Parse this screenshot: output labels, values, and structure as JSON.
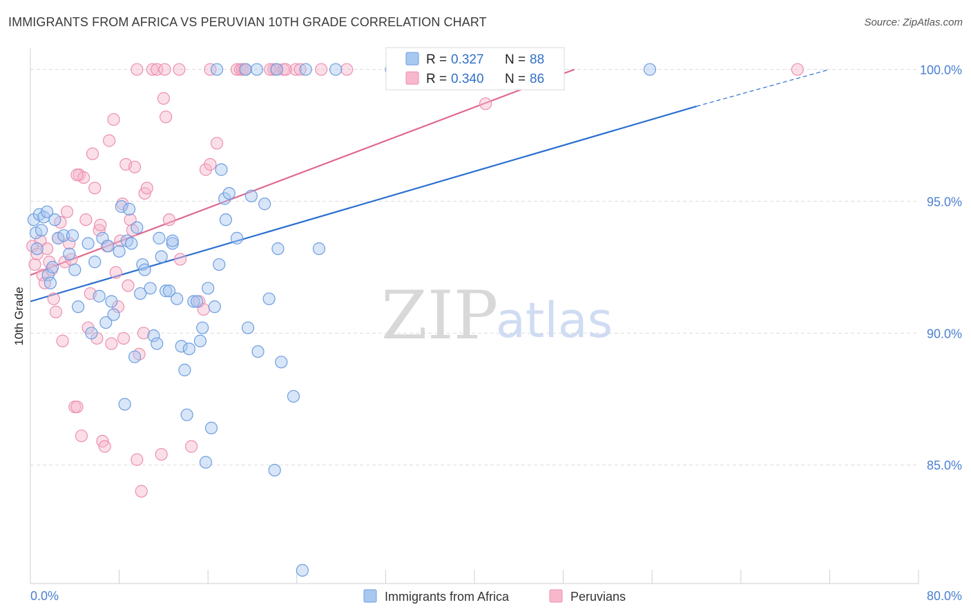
{
  "header": {
    "title": "IMMIGRANTS FROM AFRICA VS PERUVIAN 10TH GRADE CORRELATION CHART",
    "source": "Source: ZipAtlas.com"
  },
  "watermark": {
    "zip": "ZIP",
    "atlas": "atlas"
  },
  "colors": {
    "africa_fill": "#a8c8f0",
    "africa_stroke": "#6c9de0",
    "africa_line": "#2a6fd0",
    "peru_fill": "#f7b8cc",
    "peru_stroke": "#ec8fae",
    "peru_line": "#e06890",
    "grid": "#dcdcdc",
    "tick_text": "#4a7fd0"
  },
  "legend_top": {
    "rows": [
      {
        "r_label": "R =",
        "r_value": "0.327",
        "n_label": "N =",
        "n_value": "88"
      },
      {
        "r_label": "R =",
        "r_value": "0.340",
        "n_label": "N =",
        "n_value": "86"
      }
    ]
  },
  "legend_bottom": {
    "items": [
      {
        "label": "Immigrants from Africa"
      },
      {
        "label": "Peruvians"
      }
    ]
  },
  "chart_data": {
    "type": "scatter",
    "title": "IMMIGRANTS FROM AFRICA VS PERUVIAN 10TH GRADE CORRELATION CHART",
    "xlabel": "",
    "ylabel": "10th Grade",
    "xlim": [
      0,
      80
    ],
    "ylim": [
      80.5,
      100.8
    ],
    "x_tick_labels": [
      "0.0%",
      "80.0%"
    ],
    "y_ticks": [
      85,
      90,
      95,
      100
    ],
    "y_tick_labels": [
      "85.0%",
      "90.0%",
      "95.0%",
      "100.0%"
    ],
    "grid": true,
    "legend_position": "top-center",
    "series": [
      {
        "name": "Immigrants from Africa",
        "r": 0.327,
        "n": 88,
        "trend": {
          "x0": 0,
          "y0": 91.2,
          "x1": 60,
          "y1": 98.6,
          "dashed_to_x": 72,
          "dashed_to_y": 100.0
        },
        "points": [
          [
            0.3,
            94.3
          ],
          [
            0.5,
            93.8
          ],
          [
            0.6,
            93.2
          ],
          [
            0.8,
            94.5
          ],
          [
            1.0,
            93.9
          ],
          [
            1.2,
            94.4
          ],
          [
            1.5,
            94.6
          ],
          [
            1.6,
            92.2
          ],
          [
            1.8,
            91.9
          ],
          [
            2.0,
            92.5
          ],
          [
            2.2,
            94.3
          ],
          [
            2.5,
            93.6
          ],
          [
            3.0,
            93.7
          ],
          [
            3.5,
            93.0
          ],
          [
            3.8,
            93.7
          ],
          [
            4.0,
            92.4
          ],
          [
            4.3,
            91.0
          ],
          [
            5.2,
            93.4
          ],
          [
            5.5,
            90.0
          ],
          [
            5.8,
            92.7
          ],
          [
            6.2,
            91.4
          ],
          [
            6.5,
            93.6
          ],
          [
            6.8,
            90.4
          ],
          [
            7.0,
            93.3
          ],
          [
            7.3,
            91.2
          ],
          [
            7.5,
            90.7
          ],
          [
            8.0,
            93.1
          ],
          [
            8.2,
            94.8
          ],
          [
            8.5,
            87.3
          ],
          [
            8.7,
            93.5
          ],
          [
            8.9,
            94.7
          ],
          [
            9.1,
            93.4
          ],
          [
            9.4,
            89.1
          ],
          [
            9.6,
            94.0
          ],
          [
            9.9,
            91.5
          ],
          [
            10.1,
            92.6
          ],
          [
            10.3,
            92.4
          ],
          [
            10.8,
            91.7
          ],
          [
            11.1,
            89.9
          ],
          [
            11.4,
            89.6
          ],
          [
            11.6,
            93.6
          ],
          [
            11.8,
            92.9
          ],
          [
            12.2,
            91.6
          ],
          [
            12.5,
            91.6
          ],
          [
            12.8,
            93.4
          ],
          [
            13.2,
            91.3
          ],
          [
            13.6,
            89.5
          ],
          [
            13.9,
            88.6
          ],
          [
            14.1,
            86.9
          ],
          [
            14.3,
            89.4
          ],
          [
            14.7,
            91.2
          ],
          [
            15.0,
            91.2
          ],
          [
            15.3,
            89.7
          ],
          [
            15.5,
            90.2
          ],
          [
            15.8,
            85.1
          ],
          [
            16.0,
            91.7
          ],
          [
            16.3,
            86.4
          ],
          [
            16.6,
            91.0
          ],
          [
            17.0,
            92.6
          ],
          [
            17.2,
            96.2
          ],
          [
            17.5,
            95.1
          ],
          [
            17.6,
            94.3
          ],
          [
            17.9,
            95.3
          ],
          [
            18.6,
            93.6
          ],
          [
            19.6,
            90.2
          ],
          [
            19.9,
            95.2
          ],
          [
            20.5,
            89.3
          ],
          [
            21.1,
            94.9
          ],
          [
            21.5,
            91.3
          ],
          [
            22.0,
            84.8
          ],
          [
            22.3,
            93.2
          ],
          [
            22.6,
            88.9
          ],
          [
            23.7,
            87.6
          ],
          [
            24.5,
            81.0
          ],
          [
            26.0,
            93.2
          ],
          [
            19.4,
            100.0
          ],
          [
            20.4,
            100.0
          ],
          [
            22.2,
            100.0
          ],
          [
            24.8,
            100.0
          ],
          [
            27.5,
            100.0
          ],
          [
            32.5,
            100.0
          ],
          [
            32.8,
            100.0
          ],
          [
            33.1,
            100.0
          ],
          [
            33.3,
            100.0
          ],
          [
            39.3,
            100.0
          ],
          [
            55.8,
            100.0
          ],
          [
            12.8,
            93.5
          ],
          [
            16.8,
            100.0
          ]
        ]
      },
      {
        "name": "Peruvians",
        "r": 0.34,
        "n": 86,
        "trend": {
          "x0": 0,
          "y0": 92.2,
          "x1": 49,
          "y1": 100.0
        },
        "points": [
          [
            0.2,
            93.3
          ],
          [
            0.4,
            92.6
          ],
          [
            0.6,
            93.0
          ],
          [
            0.9,
            93.5
          ],
          [
            1.1,
            92.2
          ],
          [
            1.3,
            91.9
          ],
          [
            1.5,
            93.2
          ],
          [
            1.7,
            92.7
          ],
          [
            1.9,
            92.4
          ],
          [
            2.1,
            91.3
          ],
          [
            2.3,
            90.8
          ],
          [
            2.5,
            93.6
          ],
          [
            2.7,
            94.2
          ],
          [
            2.9,
            89.7
          ],
          [
            3.1,
            92.7
          ],
          [
            3.3,
            94.6
          ],
          [
            3.5,
            93.4
          ],
          [
            3.7,
            92.8
          ],
          [
            4.0,
            87.2
          ],
          [
            4.2,
            87.2
          ],
          [
            4.4,
            96.0
          ],
          [
            4.6,
            86.1
          ],
          [
            4.8,
            95.9
          ],
          [
            5.0,
            94.3
          ],
          [
            5.2,
            90.2
          ],
          [
            5.4,
            91.5
          ],
          [
            5.6,
            96.8
          ],
          [
            5.8,
            95.5
          ],
          [
            6.0,
            89.8
          ],
          [
            6.2,
            93.9
          ],
          [
            6.3,
            94.1
          ],
          [
            6.5,
            85.9
          ],
          [
            6.7,
            85.7
          ],
          [
            6.9,
            93.3
          ],
          [
            7.1,
            97.3
          ],
          [
            7.3,
            89.6
          ],
          [
            7.5,
            98.1
          ],
          [
            7.7,
            92.3
          ],
          [
            7.9,
            91.0
          ],
          [
            8.1,
            93.5
          ],
          [
            8.3,
            94.9
          ],
          [
            8.4,
            89.8
          ],
          [
            8.6,
            96.4
          ],
          [
            8.8,
            91.8
          ],
          [
            9.0,
            94.3
          ],
          [
            9.2,
            93.9
          ],
          [
            9.4,
            96.3
          ],
          [
            9.6,
            85.2
          ],
          [
            9.8,
            89.2
          ],
          [
            10.0,
            84.0
          ],
          [
            10.2,
            90.0
          ],
          [
            10.3,
            95.3
          ],
          [
            10.5,
            95.5
          ],
          [
            11.8,
            85.4
          ],
          [
            12.0,
            98.9
          ],
          [
            12.2,
            98.2
          ],
          [
            12.5,
            94.3
          ],
          [
            13.5,
            92.8
          ],
          [
            14.5,
            85.7
          ],
          [
            15.2,
            91.2
          ],
          [
            15.6,
            90.9
          ],
          [
            15.8,
            96.2
          ],
          [
            16.2,
            96.4
          ],
          [
            16.8,
            97.2
          ],
          [
            18.6,
            100.0
          ],
          [
            18.9,
            100.0
          ],
          [
            19.1,
            100.0
          ],
          [
            19.3,
            100.0
          ],
          [
            21.9,
            100.0
          ],
          [
            22.1,
            100.0
          ],
          [
            21.6,
            100.0
          ],
          [
            22.8,
            100.0
          ],
          [
            23.9,
            100.0
          ],
          [
            23.0,
            100.0
          ],
          [
            24.3,
            100.0
          ],
          [
            26.2,
            100.0
          ],
          [
            28.5,
            100.0
          ],
          [
            41.0,
            98.7
          ],
          [
            69.1,
            100.0
          ],
          [
            4.2,
            96.0
          ],
          [
            9.6,
            100.0
          ],
          [
            11.0,
            100.0
          ],
          [
            11.4,
            100.0
          ],
          [
            12.1,
            100.0
          ],
          [
            13.4,
            100.0
          ],
          [
            16.2,
            100.0
          ]
        ]
      }
    ]
  }
}
